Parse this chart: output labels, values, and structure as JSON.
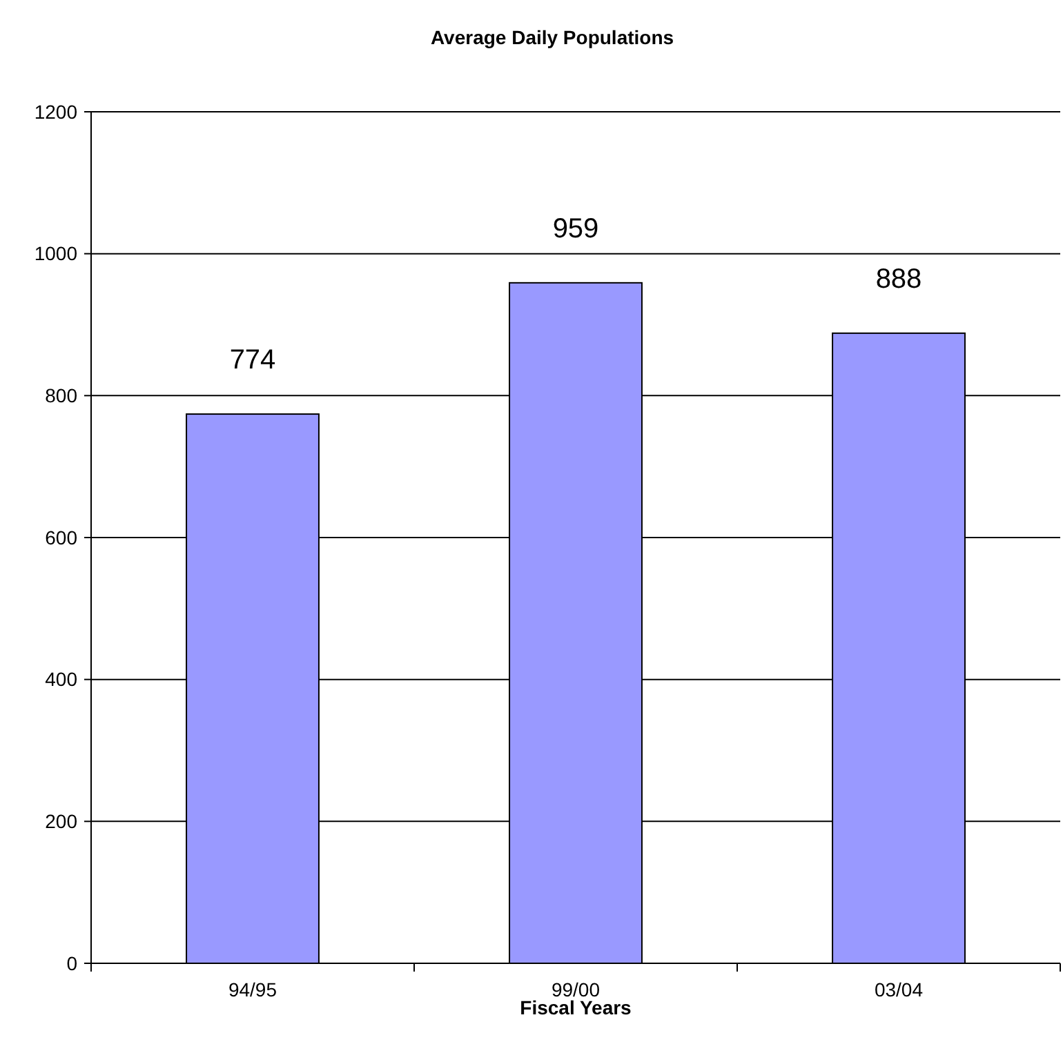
{
  "chart_data": {
    "type": "bar",
    "title": "Average Daily Populations",
    "xlabel": "Fiscal Years",
    "categories": [
      "94/95",
      "99/00",
      "03/04"
    ],
    "values": [
      774,
      959,
      888
    ],
    "color": "#9999ff",
    "ylim": [
      0,
      1200
    ],
    "yticks": [
      0,
      200,
      400,
      600,
      800,
      1000,
      1200
    ],
    "grid": "y",
    "data_labels": true
  }
}
